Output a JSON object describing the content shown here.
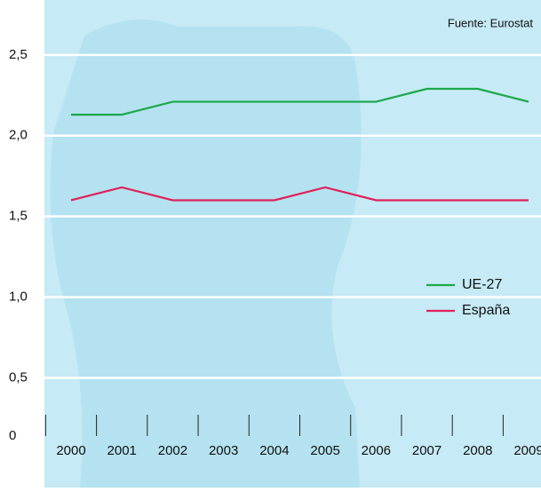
{
  "chart_data": {
    "type": "line",
    "source": "Fuente: Eurostat",
    "categories": [
      "2000",
      "2001",
      "2002",
      "2003",
      "2004",
      "2005",
      "2006",
      "2007",
      "2008",
      "2009"
    ],
    "series": [
      {
        "name": "UE-27",
        "color": "#1aa84a",
        "values": [
          2.13,
          2.13,
          2.21,
          2.21,
          2.21,
          2.21,
          2.21,
          2.29,
          2.29,
          2.21
        ]
      },
      {
        "name": "España",
        "color": "#e0205a",
        "values": [
          1.6,
          1.68,
          1.6,
          1.6,
          1.6,
          1.68,
          1.6,
          1.6,
          1.6,
          1.6
        ]
      }
    ],
    "ylim": [
      0.14,
      2.84
    ],
    "yticks": [
      {
        "value": 0,
        "label": "0"
      },
      {
        "value": 0.5,
        "label": "0,5"
      },
      {
        "value": 1,
        "label": "1,0"
      },
      {
        "value": 1.5,
        "label": "1,5"
      },
      {
        "value": 2,
        "label": "2,0"
      },
      {
        "value": 2.5,
        "label": "2,5"
      }
    ],
    "grid": true
  }
}
